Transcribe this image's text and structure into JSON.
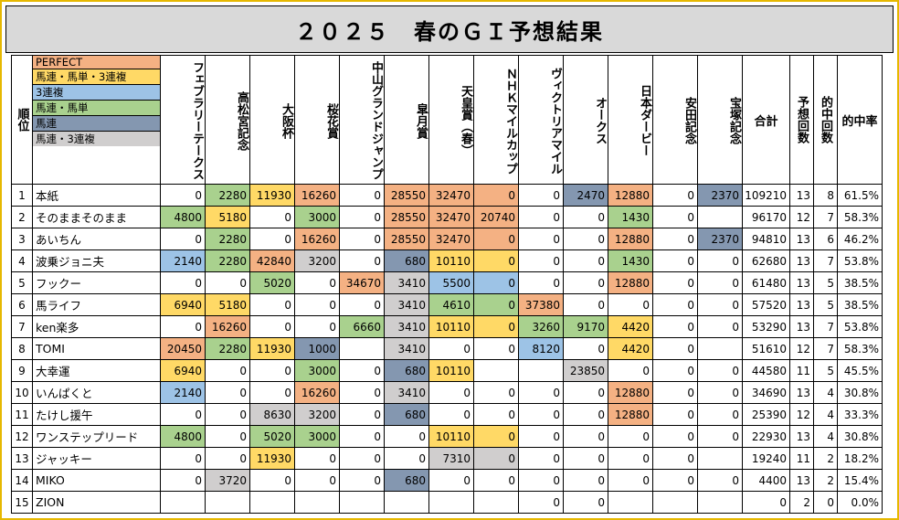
{
  "title": "２０２５　春のＧＩ予想結果",
  "colors": {
    "PERFECT": "#f4b183",
    "馬連・馬単・3連複": "#ffd966",
    "3連複": "#9dc3e6",
    "馬連・馬単": "#a9d18e",
    "馬連": "#8497b0",
    "馬連・3連複": "#d0cece"
  },
  "legend": [
    {
      "key": "perfect",
      "label": "PERFECT"
    },
    {
      "key": "uma3",
      "label": "馬連・馬単・3連複"
    },
    {
      "key": "3ren",
      "label": "3連複"
    },
    {
      "key": "umaten",
      "label": "馬連・馬単"
    },
    {
      "key": "uma",
      "label": "馬連"
    },
    {
      "key": "uma3ren",
      "label": "馬連・3連複"
    }
  ],
  "headers": {
    "rank": "順位",
    "races": [
      "フェブラリーテークス",
      "高松宮記念",
      "大阪杯",
      "桜花賞",
      "中山グランドジャンプ",
      "皐月賞",
      "天皇賞（春）",
      "ＮＨＫマイルカップ",
      "ヴィクトリアマイル",
      "オークス",
      "日本ダービー",
      "安田記念",
      "宝塚記念"
    ],
    "total": "合計",
    "count": "予想回数",
    "hits": "的中回数",
    "rate": "的中率"
  },
  "rows": [
    {
      "rank": "1",
      "name": "本紙",
      "v": [
        "0",
        "2280",
        "11930",
        "16260",
        "0",
        "28550",
        "32470",
        "0",
        "0",
        "2470",
        "12880",
        "0",
        "2370"
      ],
      "c": [
        "",
        "umaten",
        "uma3",
        "perfect",
        "",
        "perfect",
        "perfect",
        "perfect",
        "",
        "uma",
        "perfect",
        "",
        "uma"
      ],
      "total": "109210",
      "count": "13",
      "hits": "8",
      "rate": "61.5%"
    },
    {
      "rank": "2",
      "name": "そのままそのまま",
      "v": [
        "4800",
        "5180",
        "0",
        "3000",
        "0",
        "28550",
        "32470",
        "20740",
        "0",
        "0",
        "1430",
        "0",
        ""
      ],
      "c": [
        "umaten",
        "uma3",
        "",
        "umaten",
        "",
        "perfect",
        "perfect",
        "perfect",
        "",
        "",
        "umaten",
        "",
        ""
      ],
      "total": "96170",
      "count": "12",
      "hits": "7",
      "rate": "58.3%"
    },
    {
      "rank": "3",
      "name": "あいちん",
      "v": [
        "0",
        "2280",
        "0",
        "16260",
        "0",
        "28550",
        "32470",
        "0",
        "0",
        "0",
        "12880",
        "0",
        "2370"
      ],
      "c": [
        "",
        "umaten",
        "",
        "perfect",
        "",
        "perfect",
        "perfect",
        "perfect",
        "",
        "",
        "perfect",
        "",
        "uma"
      ],
      "total": "94810",
      "count": "13",
      "hits": "6",
      "rate": "46.2%"
    },
    {
      "rank": "4",
      "name": "波乗ジョニ夫",
      "v": [
        "2140",
        "2280",
        "42840",
        "3200",
        "0",
        "680",
        "10110",
        "0",
        "0",
        "0",
        "1430",
        "0",
        "0"
      ],
      "c": [
        "3ren",
        "umaten",
        "perfect",
        "uma3ren",
        "",
        "uma",
        "uma3",
        "uma3",
        "",
        "",
        "umaten",
        "",
        ""
      ],
      "total": "62680",
      "count": "13",
      "hits": "7",
      "rate": "53.8%"
    },
    {
      "rank": "5",
      "name": "フックー",
      "v": [
        "0",
        "0",
        "5020",
        "0",
        "34670",
        "3410",
        "5500",
        "0",
        "0",
        "0",
        "12880",
        "0",
        "0"
      ],
      "c": [
        "",
        "",
        "umaten",
        "",
        "perfect",
        "uma3ren",
        "3ren",
        "3ren",
        "",
        "",
        "perfect",
        "",
        ""
      ],
      "total": "61480",
      "count": "13",
      "hits": "5",
      "rate": "38.5%"
    },
    {
      "rank": "6",
      "name": "馬ライフ",
      "v": [
        "6940",
        "5180",
        "0",
        "0",
        "0",
        "3410",
        "4610",
        "0",
        "37380",
        "0",
        "0",
        "0",
        "0"
      ],
      "c": [
        "uma3",
        "uma3",
        "",
        "",
        "",
        "uma3ren",
        "umaten",
        "umaten",
        "perfect",
        "",
        "",
        "",
        ""
      ],
      "total": "57520",
      "count": "13",
      "hits": "5",
      "rate": "38.5%"
    },
    {
      "rank": "7",
      "name": "ken楽多",
      "v": [
        "0",
        "16260",
        "0",
        "0",
        "6660",
        "3410",
        "10110",
        "0",
        "3260",
        "9170",
        "4420",
        "0",
        "0"
      ],
      "c": [
        "",
        "perfect",
        "",
        "",
        "umaten",
        "uma3ren",
        "uma3",
        "uma3",
        "umaten",
        "umaten",
        "uma3",
        "",
        ""
      ],
      "total": "53290",
      "count": "13",
      "hits": "7",
      "rate": "53.8%"
    },
    {
      "rank": "8",
      "name": "TOMI",
      "v": [
        "20450",
        "2280",
        "11930",
        "1000",
        "",
        "3410",
        "0",
        "0",
        "8120",
        "0",
        "4420",
        "0",
        ""
      ],
      "c": [
        "perfect",
        "umaten",
        "uma3",
        "uma",
        "",
        "uma3ren",
        "",
        "",
        "3ren",
        "",
        "uma3",
        "",
        ""
      ],
      "total": "51610",
      "count": "12",
      "hits": "7",
      "rate": "58.3%"
    },
    {
      "rank": "9",
      "name": "大幸運",
      "v": [
        "6940",
        "0",
        "0",
        "3000",
        "0",
        "680",
        "10110",
        "",
        "",
        "23850",
        "0",
        "0",
        "0"
      ],
      "c": [
        "uma3",
        "",
        "",
        "umaten",
        "",
        "uma",
        "uma3",
        "",
        "",
        "uma3ren",
        "",
        "",
        ""
      ],
      "total": "44580",
      "count": "11",
      "hits": "5",
      "rate": "45.5%"
    },
    {
      "rank": "10",
      "name": "いんぱくと",
      "v": [
        "2140",
        "0",
        "0",
        "16260",
        "0",
        "3410",
        "0",
        "0",
        "0",
        "0",
        "12880",
        "0",
        "0"
      ],
      "c": [
        "3ren",
        "",
        "",
        "perfect",
        "",
        "uma3ren",
        "",
        "",
        "",
        "",
        "perfect",
        "",
        ""
      ],
      "total": "34690",
      "count": "13",
      "hits": "4",
      "rate": "30.8%"
    },
    {
      "rank": "11",
      "name": "たけし援午",
      "v": [
        "0",
        "0",
        "8630",
        "3200",
        "0",
        "680",
        "0",
        "0",
        "0",
        "0",
        "12880",
        "0",
        "0"
      ],
      "c": [
        "",
        "",
        "uma3ren",
        "uma3ren",
        "",
        "uma",
        "",
        "",
        "",
        "",
        "perfect",
        "",
        ""
      ],
      "total": "25390",
      "count": "12",
      "hits": "4",
      "rate": "33.3%"
    },
    {
      "rank": "12",
      "name": "ワンステップリード",
      "v": [
        "4800",
        "0",
        "5020",
        "3000",
        "0",
        "0",
        "10110",
        "0",
        "0",
        "0",
        "0",
        "0",
        "0"
      ],
      "c": [
        "umaten",
        "",
        "umaten",
        "umaten",
        "",
        "",
        "uma3",
        "uma3",
        "",
        "",
        "",
        "",
        ""
      ],
      "total": "22930",
      "count": "13",
      "hits": "4",
      "rate": "30.8%"
    },
    {
      "rank": "13",
      "name": "ジャッキー",
      "v": [
        "0",
        "0",
        "11930",
        "0",
        "0",
        "0",
        "7310",
        "0",
        "0",
        "0",
        "0",
        "0",
        ""
      ],
      "c": [
        "",
        "",
        "uma3",
        "",
        "",
        "",
        "uma3ren",
        "uma3ren",
        "",
        "",
        "",
        "",
        ""
      ],
      "total": "19240",
      "count": "11",
      "hits": "2",
      "rate": "18.2%"
    },
    {
      "rank": "14",
      "name": "MIKO",
      "v": [
        "0",
        "3720",
        "0",
        "0",
        "0",
        "680",
        "0",
        "0",
        "0",
        "0",
        "0",
        "0",
        "0"
      ],
      "c": [
        "",
        "uma3ren",
        "",
        "",
        "",
        "uma",
        "",
        "",
        "",
        "",
        "",
        "",
        ""
      ],
      "total": "4400",
      "count": "13",
      "hits": "2",
      "rate": "15.4%"
    },
    {
      "rank": "15",
      "name": "ZION",
      "v": [
        "",
        "",
        "",
        "",
        "",
        "",
        "",
        "",
        "0",
        "0",
        "",
        "",
        ""
      ],
      "c": [
        "",
        "",
        "",
        "",
        "",
        "",
        "",
        "",
        "",
        "",
        "",
        "",
        ""
      ],
      "total": "0",
      "count": "2",
      "hits": "0",
      "rate": "0.0%"
    }
  ]
}
